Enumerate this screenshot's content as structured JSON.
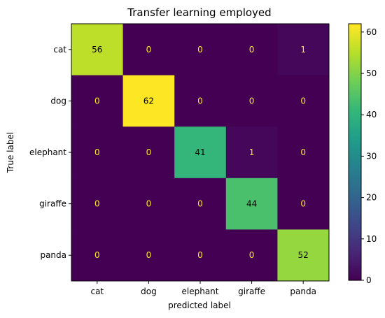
{
  "chart_data": {
    "type": "heatmap",
    "title": "Transfer learning employed",
    "xlabel": "predicted label",
    "ylabel": "True label",
    "x_categories": [
      "cat",
      "dog",
      "elephant",
      "giraffe",
      "panda"
    ],
    "y_categories": [
      "cat",
      "dog",
      "elephant",
      "giraffe",
      "panda"
    ],
    "values": [
      [
        56,
        0,
        0,
        0,
        1
      ],
      [
        0,
        62,
        0,
        0,
        0
      ],
      [
        0,
        0,
        41,
        1,
        0
      ],
      [
        0,
        0,
        0,
        44,
        0
      ],
      [
        0,
        0,
        0,
        0,
        52
      ]
    ],
    "colormap": "viridis",
    "vmin": 0,
    "vmax": 62,
    "colorbar_ticks": [
      0,
      10,
      20,
      30,
      40,
      50,
      60
    ],
    "grid": false,
    "text_color_low": "#fde725",
    "text_color_high": "#000000"
  }
}
